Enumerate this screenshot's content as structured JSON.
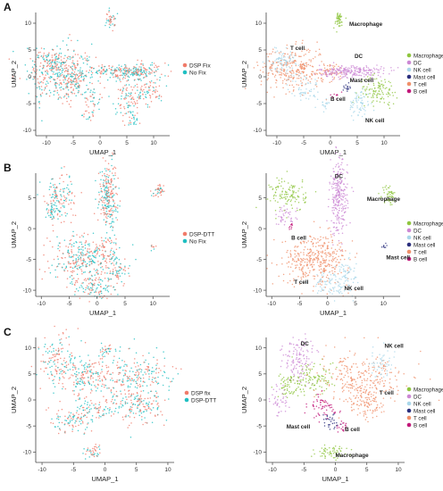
{
  "colors": {
    "dsp": "#f07b6a",
    "nofix": "#1fbfc2",
    "macrophage": "#8fc63f",
    "dc": "#cc88d4",
    "nk": "#a9d7ea",
    "mast": "#2b2f7d",
    "t": "#f0906a",
    "b": "#c2187a",
    "axis": "#444444"
  },
  "chart_data": [
    {
      "id": "A-left",
      "panel_letter": "A",
      "type": "scatter",
      "xlabel": "UMAP_1",
      "ylabel": "UMAP_2",
      "xticks": [
        -10,
        -5,
        0,
        5,
        10
      ],
      "yticks": [
        10,
        5,
        0,
        -5,
        -10
      ],
      "xlim": [
        -12,
        13
      ],
      "ylim": [
        -11,
        12
      ],
      "legend": [
        "DSP Fix",
        "No Fix"
      ]
    },
    {
      "id": "A-right",
      "type": "scatter",
      "xlabel": "UMAP_1",
      "ylabel": "UMAP_2",
      "xticks": [
        -10,
        -5,
        0,
        5,
        10
      ],
      "yticks": [
        10,
        5,
        0,
        -5,
        -10
      ],
      "xlim": [
        -12,
        13
      ],
      "ylim": [
        -11,
        12
      ],
      "legend": [
        "Macrophage",
        "DC",
        "NK cell",
        "Mast cell",
        "T cell",
        "B cell"
      ],
      "annotations": [
        "Macrophage",
        "T cell",
        "DC",
        "Mast cell",
        "B cell",
        "NK cell"
      ]
    },
    {
      "id": "B-left",
      "panel_letter": "B",
      "type": "scatter",
      "xlabel": "UMAP_1",
      "ylabel": "UMAP_2",
      "xticks": [
        -10,
        -5,
        0,
        5,
        10
      ],
      "yticks": [
        5,
        0,
        -5,
        -10
      ],
      "xlim": [
        -11,
        13
      ],
      "ylim": [
        -11,
        9
      ],
      "legend": [
        "DSP-DTT",
        "No Fix"
      ]
    },
    {
      "id": "B-right",
      "type": "scatter",
      "xlabel": "UMAP_1",
      "ylabel": "UMAP_2",
      "xticks": [
        -10,
        -5,
        0,
        5,
        10
      ],
      "yticks": [
        5,
        0,
        -5,
        -10
      ],
      "xlim": [
        -11,
        13
      ],
      "ylim": [
        -11,
        9
      ],
      "legend": [
        "Macrophage",
        "DC",
        "NK cell",
        "Mast cell",
        "T cell",
        "B cell"
      ],
      "annotations": [
        "DC",
        "Macrophage",
        "B cell",
        "Mast cell",
        "T cell",
        "NK cell"
      ]
    },
    {
      "id": "C-left",
      "panel_letter": "C",
      "type": "scatter",
      "xlabel": "UMAP_1",
      "ylabel": "UMAP_2",
      "xticks": [
        -10,
        -5,
        0,
        5,
        10
      ],
      "yticks": [
        10,
        5,
        0,
        -5,
        -10
      ],
      "xlim": [
        -11,
        11
      ],
      "ylim": [
        -12,
        12
      ],
      "legend": [
        "DSP fix",
        "DSP-DTT"
      ]
    },
    {
      "id": "C-right",
      "type": "scatter",
      "xlabel": "UMAP_1",
      "ylabel": "UMAP_2",
      "xticks": [
        -10,
        -5,
        0,
        5,
        10
      ],
      "yticks": [
        10,
        5,
        0,
        -5,
        -10
      ],
      "xlim": [
        -11,
        11
      ],
      "ylim": [
        -12,
        12
      ],
      "legend": [
        "Macrophage",
        "DC",
        "NK cell",
        "Mast cell",
        "T cell",
        "B cell"
      ],
      "annotations": [
        "DC",
        "NK cell",
        "T cell",
        "Mast cell",
        "B cell",
        "Macrophage"
      ]
    }
  ]
}
